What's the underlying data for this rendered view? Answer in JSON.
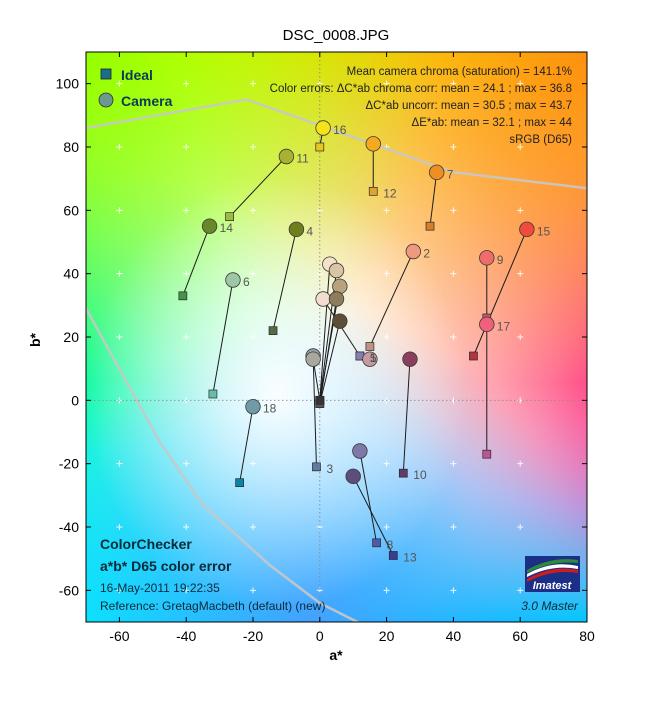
{
  "chart_data": {
    "type": "scatter",
    "title": "DSC_0008.JPG",
    "xlabel": "a*",
    "ylabel": "b*",
    "xlim": [
      -70,
      80
    ],
    "ylim": [
      -70,
      110
    ],
    "x_ticks": [
      -60,
      -40,
      -20,
      0,
      20,
      40,
      60,
      80
    ],
    "y_ticks": [
      -60,
      -40,
      -20,
      0,
      20,
      40,
      60,
      80,
      100
    ],
    "grid": true,
    "legend": {
      "position": "top-left",
      "entries": [
        {
          "label": "Ideal",
          "marker": "square",
          "color": "#1a6e8a"
        },
        {
          "label": "Camera",
          "marker": "circle",
          "color": "#6a9a8e"
        }
      ]
    },
    "stats_lines": [
      "Mean camera chroma (saturation) = 141.1%",
      "Color errors: ΔC*ab chroma corr:  mean = 24.1 ;  max = 36.8",
      "ΔC*ab uncorr:  mean = 30.5 ;  max = 43.7",
      "ΔE*ab:  mean = 32.1 ;  max = 44",
      "sRGB (D65)"
    ],
    "footer": {
      "line1": "ColorChecker",
      "line2": "a*b* D65 color error",
      "date": "16-May-2011 19:22:35",
      "reference": "Reference: GretagMacbeth (default) (new)",
      "version": "3.0  Master",
      "logo_text": "Imatest"
    },
    "gamut_boundary_upper": [
      [
        -70,
        86
      ],
      [
        -22,
        95
      ],
      [
        5,
        85
      ],
      [
        40,
        72
      ],
      [
        80,
        67
      ]
    ],
    "gamut_boundary_lower": [
      [
        -70,
        29
      ],
      [
        -48,
        -13
      ],
      [
        -35,
        -33
      ],
      [
        -15,
        -52
      ],
      [
        0,
        -64
      ],
      [
        15,
        -72
      ]
    ],
    "patches": [
      {
        "id": "1",
        "label": true,
        "ideal": [
          12,
          14
        ],
        "camera": [
          1,
          32
        ],
        "color": "#f1ded0",
        "ideal_color": "#73523f"
      },
      {
        "id": "2",
        "label": true,
        "ideal": [
          15,
          17
        ],
        "camera": [
          28,
          47
        ],
        "color": "#ef9a7e",
        "ideal_color": "#c29382"
      },
      {
        "id": "3",
        "label": true,
        "ideal": [
          -1,
          -21
        ],
        "camera": [
          -2,
          14
        ],
        "color": "#9aa2a8",
        "ideal_color": "#627a9d"
      },
      {
        "id": "4",
        "label": true,
        "ideal": [
          -14,
          22
        ],
        "camera": [
          -7,
          54
        ],
        "color": "#6f7f1c",
        "ideal_color": "#576c43"
      },
      {
        "id": "5",
        "label": true,
        "ideal": [
          12,
          14
        ],
        "camera": [
          15,
          13
        ],
        "color": "#c59aa0",
        "ideal_color": "#8580b1"
      },
      {
        "id": "6",
        "label": true,
        "ideal": [
          -32,
          2
        ],
        "camera": [
          -26,
          38
        ],
        "color": "#9cc7a4",
        "ideal_color": "#67bdaa"
      },
      {
        "id": "7",
        "label": true,
        "ideal": [
          33,
          55
        ],
        "camera": [
          35,
          72
        ],
        "color": "#ee8f23",
        "ideal_color": "#d67e2c"
      },
      {
        "id": "8",
        "label": true,
        "ideal": [
          17,
          -45
        ],
        "camera": [
          12,
          -16
        ],
        "color": "#7f78a8",
        "ideal_color": "#505ba6"
      },
      {
        "id": "9",
        "label": true,
        "ideal": [
          50,
          26
        ],
        "camera": [
          50,
          45
        ],
        "color": "#f06c6c",
        "ideal_color": "#c15a63"
      },
      {
        "id": "10",
        "label": true,
        "ideal": [
          25,
          -23
        ],
        "camera": [
          27,
          13
        ],
        "color": "#8a3f5c",
        "ideal_color": "#5e3c6c"
      },
      {
        "id": "11",
        "label": true,
        "ideal": [
          -27,
          58
        ],
        "camera": [
          -10,
          77
        ],
        "color": "#a8b130",
        "ideal_color": "#9dbc40"
      },
      {
        "id": "12",
        "label": true,
        "ideal": [
          16,
          66
        ],
        "camera": [
          16,
          81
        ],
        "color": "#f6a91e",
        "ideal_color": "#e0a32e"
      },
      {
        "id": "13",
        "label": true,
        "ideal": [
          22,
          -49
        ],
        "camera": [
          10,
          -24
        ],
        "color": "#5c4d7c",
        "ideal_color": "#383d96"
      },
      {
        "id": "14",
        "label": true,
        "ideal": [
          -41,
          33
        ],
        "camera": [
          -33,
          55
        ],
        "color": "#68892a",
        "ideal_color": "#469449"
      },
      {
        "id": "15",
        "label": true,
        "ideal": [
          46,
          14
        ],
        "camera": [
          62,
          54
        ],
        "color": "#f04b3c",
        "ideal_color": "#af363c"
      },
      {
        "id": "16",
        "label": true,
        "ideal": [
          0,
          80
        ],
        "camera": [
          1,
          86
        ],
        "color": "#f6e215",
        "ideal_color": "#e7c71f"
      },
      {
        "id": "17",
        "label": true,
        "ideal": [
          50,
          -17
        ],
        "camera": [
          50,
          24
        ],
        "color": "#f0607a",
        "ideal_color": "#bb5695"
      },
      {
        "id": "18",
        "label": true,
        "ideal": [
          -24,
          -26
        ],
        "camera": [
          -20,
          -2
        ],
        "color": "#6f9ba6",
        "ideal_color": "#0885a1"
      },
      {
        "id": "19",
        "label": false,
        "ideal": [
          0,
          0
        ],
        "camera": [
          3,
          43
        ],
        "color": "#f3e2c8",
        "ideal_color": "#f3f3f2"
      },
      {
        "id": "20",
        "label": false,
        "ideal": [
          0,
          0
        ],
        "camera": [
          5,
          41
        ],
        "color": "#d9c5a4",
        "ideal_color": "#c8c8c8"
      },
      {
        "id": "21",
        "label": false,
        "ideal": [
          0,
          0
        ],
        "camera": [
          6,
          36
        ],
        "color": "#b8a27c",
        "ideal_color": "#a0a0a0"
      },
      {
        "id": "22",
        "label": false,
        "ideal": [
          0,
          -1
        ],
        "camera": [
          5,
          32
        ],
        "color": "#8f7c5c",
        "ideal_color": "#7a7a79"
      },
      {
        "id": "23",
        "label": false,
        "ideal": [
          0,
          -1
        ],
        "camera": [
          6,
          25
        ],
        "color": "#5e4d37",
        "ideal_color": "#555555"
      },
      {
        "id": "24",
        "label": false,
        "ideal": [
          0,
          0
        ],
        "camera": [
          -2,
          13
        ],
        "color": "#a9a89c",
        "ideal_color": "#343434"
      }
    ]
  }
}
